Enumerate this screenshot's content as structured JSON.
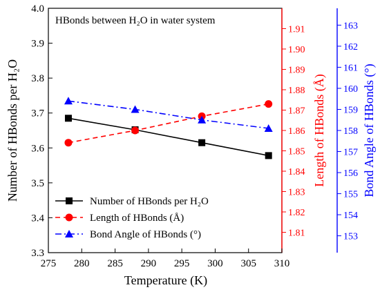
{
  "chart_data": {
    "type": "line",
    "title": "HBonds between H₂O in water system",
    "x": [
      278,
      288,
      298,
      308
    ],
    "xlabel": "Temperature (K)",
    "xlim": [
      275,
      310
    ],
    "xticks": [
      275,
      280,
      285,
      290,
      295,
      300,
      305,
      310
    ],
    "ylabel_left": "Number of HBonds per H₂O",
    "ylabel_right1": "Length of HBonds (Å)",
    "ylabel_right2": "Bond Angle of HBonds (°)",
    "ylim_left": [
      3.3,
      4.0
    ],
    "yticks_left": [
      "3.3",
      "3.4",
      "3.5",
      "3.6",
      "3.7",
      "3.8",
      "3.9",
      "4.0"
    ],
    "ylim_right1": [
      1.8,
      1.92
    ],
    "yticks_right1": [
      "1.81",
      "1.82",
      "1.83",
      "1.84",
      "1.85",
      "1.86",
      "1.87",
      "1.88",
      "1.89",
      "1.90",
      "1.91"
    ],
    "ylim_right2": [
      152.2,
      163.8
    ],
    "yticks_right2": [
      "153",
      "154",
      "155",
      "156",
      "157",
      "158",
      "159",
      "160",
      "161",
      "162",
      "163"
    ],
    "series": [
      {
        "name": "Number of HBonds per H₂O",
        "axis": "left",
        "color": "#000000",
        "marker": "square",
        "line": "solid",
        "values": [
          3.685,
          3.652,
          3.615,
          3.578
        ]
      },
      {
        "name": "Length of HBonds (Å)",
        "axis": "right1",
        "color": "#ff0000",
        "marker": "circle",
        "line": "dashed",
        "values": [
          1.854,
          1.86,
          1.867,
          1.873
        ]
      },
      {
        "name": "Bond Angle of HBonds (°)",
        "axis": "right2",
        "color": "#0000ff",
        "marker": "triangle",
        "line": "dashdot",
        "values": [
          159.4,
          159.0,
          158.5,
          158.1
        ]
      }
    ],
    "legend_position": "bottom-left",
    "grid": false
  }
}
